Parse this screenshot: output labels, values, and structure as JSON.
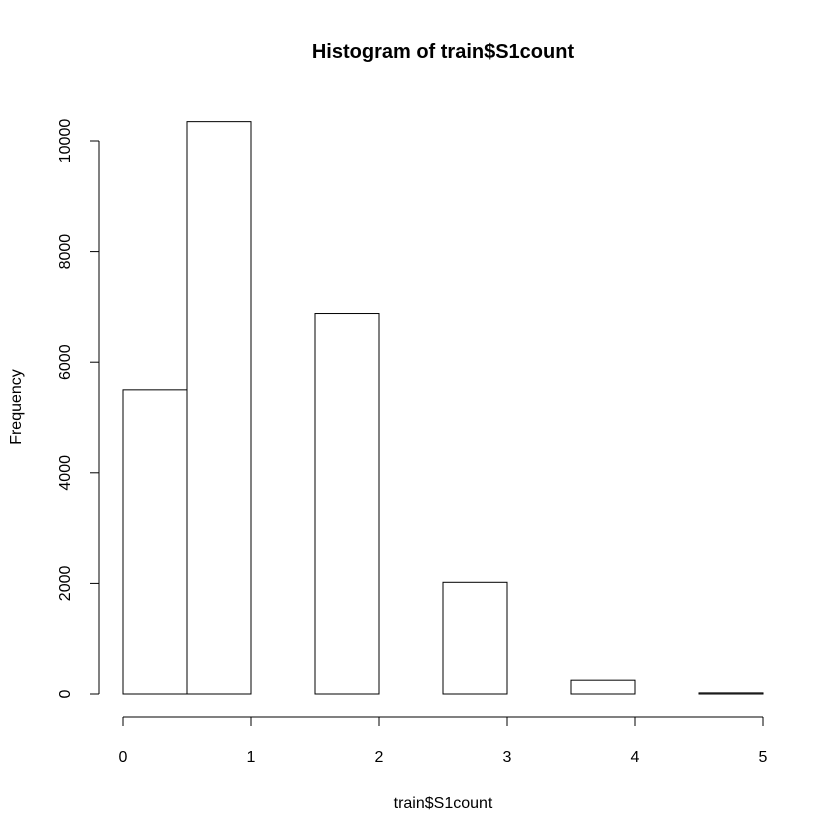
{
  "chart_data": {
    "type": "bar",
    "title": "Histogram of train$S1count",
    "xlabel": "train$S1count",
    "ylabel": "Frequency",
    "bins": [
      {
        "start": 0.0,
        "end": 0.5,
        "count": 5500
      },
      {
        "start": 0.5,
        "end": 1.0,
        "count": 10350
      },
      {
        "start": 1.0,
        "end": 1.5,
        "count": 0
      },
      {
        "start": 1.5,
        "end": 2.0,
        "count": 6880
      },
      {
        "start": 2.0,
        "end": 2.5,
        "count": 0
      },
      {
        "start": 2.5,
        "end": 3.0,
        "count": 2020
      },
      {
        "start": 3.0,
        "end": 3.5,
        "count": 0
      },
      {
        "start": 3.5,
        "end": 4.0,
        "count": 250
      },
      {
        "start": 4.0,
        "end": 4.5,
        "count": 0
      },
      {
        "start": 4.5,
        "end": 5.0,
        "count": 20
      }
    ],
    "xlim": [
      0,
      5
    ],
    "ylim": [
      0,
      10350
    ],
    "x_ticks": [
      "0",
      "1",
      "2",
      "3",
      "4",
      "5"
    ],
    "y_ticks": [
      "0",
      "2000",
      "4000",
      "6000",
      "8000",
      "10000"
    ],
    "grid": false,
    "colors": {
      "bar_fill": "#ffffff",
      "bar_stroke": "#000000"
    }
  }
}
